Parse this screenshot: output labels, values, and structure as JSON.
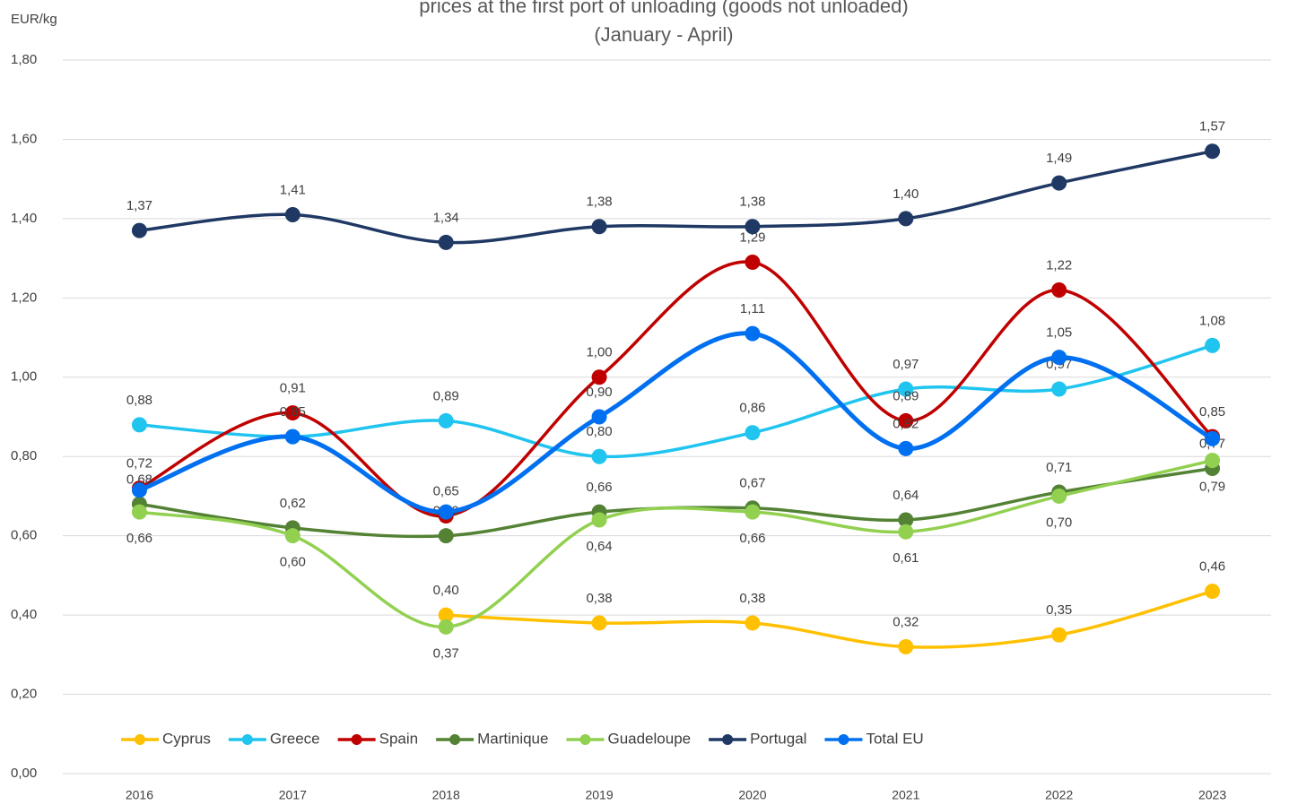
{
  "chart_data": {
    "type": "line",
    "title": "prices at the first port of unloading (goods not unloaded)",
    "subtitle": "(January - April)",
    "y_label": "EUR/kg",
    "categories": [
      "2016",
      "2017",
      "2018",
      "2019",
      "2020",
      "2021",
      "2022",
      "2023"
    ],
    "ylim": [
      0,
      1.8
    ],
    "yticks": [
      {
        "value": 0,
        "label": "0,00"
      },
      {
        "value": 0.2,
        "label": "0,20"
      },
      {
        "value": 0.4,
        "label": "0,40"
      },
      {
        "value": 0.6,
        "label": "0,60"
      },
      {
        "value": 0.8,
        "label": "0,80"
      },
      {
        "value": 1.0,
        "label": "1,00"
      },
      {
        "value": 1.2,
        "label": "1,20"
      },
      {
        "value": 1.4,
        "label": "1,40"
      },
      {
        "value": 1.6,
        "label": "1,60"
      },
      {
        "value": 1.8,
        "label": "1,80"
      }
    ],
    "grid": true,
    "legend": "bottom",
    "series": [
      {
        "name": "Cyprus",
        "color": "#ffc000",
        "values": [
          null,
          null,
          0.4,
          0.38,
          0.38,
          0.32,
          0.35,
          0.46
        ],
        "value_labels": [
          null,
          null,
          "0,40",
          "0,38",
          "0,38",
          "0,32",
          "0,35",
          "0,46"
        ]
      },
      {
        "name": "Greece",
        "color": "#1fc4ef",
        "values": [
          0.88,
          0.85,
          0.89,
          0.8,
          0.86,
          0.97,
          0.97,
          1.08
        ],
        "value_labels": [
          "0,88",
          null,
          "0,89",
          "0,80",
          "0,86",
          "0,97",
          "0,97",
          "1,08"
        ]
      },
      {
        "name": "Spain",
        "color": "#c00000",
        "values": [
          0.72,
          0.91,
          0.65,
          1.0,
          1.29,
          0.89,
          1.22,
          0.85
        ],
        "value_labels": [
          "0,72",
          "0,91",
          "0,65",
          "1,00",
          "1,29",
          "0,89",
          "1,22",
          "0,85"
        ]
      },
      {
        "name": "Martinique",
        "color": "#548235",
        "values": [
          0.68,
          0.62,
          0.6,
          0.66,
          0.67,
          0.64,
          0.71,
          0.77
        ],
        "value_labels": [
          "0,68",
          "0,62",
          "0,60",
          "0,66",
          "0,67",
          "0,64",
          "0,71",
          "0,77"
        ]
      },
      {
        "name": "Guadeloupe",
        "color": "#92d050",
        "values": [
          0.66,
          0.6,
          0.37,
          0.64,
          0.66,
          0.61,
          0.7,
          0.79
        ],
        "value_labels": [
          "0,66",
          "0,60",
          "0,37",
          "0,64",
          "0,66",
          "0,61",
          "0,70",
          "0,79"
        ]
      },
      {
        "name": "Portugal",
        "color": "#1f3864",
        "values": [
          1.37,
          1.41,
          1.34,
          1.38,
          1.38,
          1.4,
          1.49,
          1.57
        ],
        "value_labels": [
          "1,37",
          "1,41",
          "1,34",
          "1,38",
          "1,38",
          "1,40",
          "1,49",
          "1,57"
        ]
      },
      {
        "name": "Total EU",
        "color": "#0070f0",
        "values": [
          0.715,
          0.85,
          0.66,
          0.9,
          1.11,
          0.82,
          1.05,
          0.845
        ],
        "value_labels": [
          null,
          "0,85",
          null,
          "0,90",
          "1,11",
          "0,82",
          "1,05",
          null
        ]
      }
    ]
  }
}
